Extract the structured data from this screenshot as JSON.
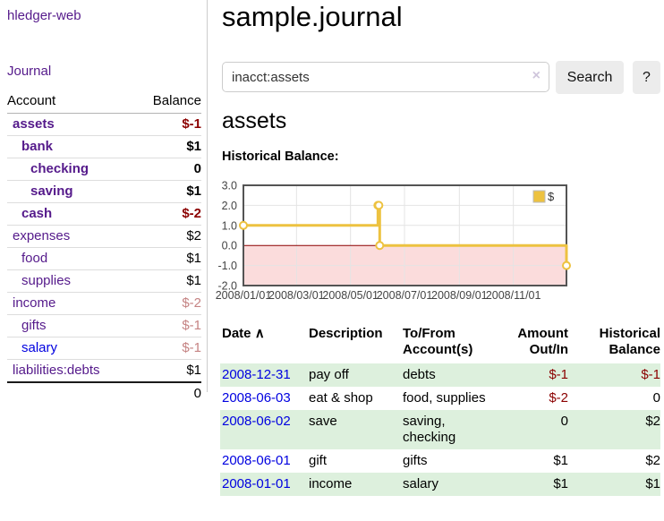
{
  "app": {
    "brand": "hledger-web",
    "nav_journal": "Journal"
  },
  "header": {
    "title": "sample.journal"
  },
  "search": {
    "query": "inacct:assets",
    "clear_icon": "×",
    "search_label": "Search",
    "help_label": "?"
  },
  "account_page": {
    "heading": "assets",
    "chart_label": "Historical Balance:"
  },
  "sidebar": {
    "headers": {
      "account": "Account",
      "balance": "Balance"
    },
    "accounts": [
      {
        "name": "assets",
        "balance": "$-1",
        "depth": 1,
        "bold": true,
        "bal": "neg",
        "link": "purple"
      },
      {
        "name": "bank",
        "balance": "$1",
        "depth": 2,
        "bold": true,
        "bal": "pos",
        "link": "purple"
      },
      {
        "name": "checking",
        "balance": "0",
        "depth": 3,
        "bold": true,
        "bal": "pos",
        "link": "purple"
      },
      {
        "name": "saving",
        "balance": "$1",
        "depth": 3,
        "bold": true,
        "bal": "pos",
        "link": "purple"
      },
      {
        "name": "cash",
        "balance": "$-2",
        "depth": 2,
        "bold": true,
        "bal": "neg",
        "link": "purple"
      },
      {
        "name": "expenses",
        "balance": "$2",
        "depth": 1,
        "bold": false,
        "bal": "pos",
        "link": "purple"
      },
      {
        "name": "food",
        "balance": "$1",
        "depth": 2,
        "bold": false,
        "bal": "pos",
        "link": "purple"
      },
      {
        "name": "supplies",
        "balance": "$1",
        "depth": 2,
        "bold": false,
        "bal": "pos",
        "link": "purple"
      },
      {
        "name": "income",
        "balance": "$-2",
        "depth": 1,
        "bold": false,
        "bal": "negfade",
        "link": "purple"
      },
      {
        "name": "gifts",
        "balance": "$-1",
        "depth": 2,
        "bold": false,
        "bal": "negfade",
        "link": "purple"
      },
      {
        "name": "salary",
        "balance": "$-1",
        "depth": 2,
        "bold": false,
        "bal": "negfade",
        "link": "blue"
      },
      {
        "name": "liabilities:debts",
        "balance": "$1",
        "depth": 1,
        "bold": false,
        "bal": "pos",
        "link": "purple"
      }
    ],
    "total": "0"
  },
  "chart_data": {
    "type": "line",
    "step": true,
    "series": [
      {
        "name": "$",
        "color": "#edc240",
        "points": [
          {
            "date": "2008-01-01",
            "value": 1
          },
          {
            "date": "2008-06-01",
            "value": 2
          },
          {
            "date": "2008-06-02",
            "value": 2
          },
          {
            "date": "2008-06-03",
            "value": 0
          },
          {
            "date": "2008-12-31",
            "value": -1
          }
        ]
      }
    ],
    "ylim": [
      -2,
      3
    ],
    "xrange": [
      "2008-01-01",
      "2008-12-31"
    ],
    "yticks": [
      {
        "value": 3,
        "label": "3.0"
      },
      {
        "value": 2,
        "label": "2.0"
      },
      {
        "value": 1,
        "label": "1.0"
      },
      {
        "value": 0,
        "label": "0.0"
      },
      {
        "value": -1,
        "label": "-1.0"
      },
      {
        "value": -2,
        "label": "-2.0"
      }
    ],
    "xticks": [
      {
        "date": "2008-01-01",
        "label": "2008/01/01"
      },
      {
        "date": "2008-03-01",
        "label": "2008/03/01"
      },
      {
        "date": "2008-05-01",
        "label": "2008/05/01"
      },
      {
        "date": "2008-07-01",
        "label": "2008/07/01"
      },
      {
        "date": "2008-09-01",
        "label": "2008/09/01"
      },
      {
        "date": "2008-11-01",
        "label": "2008/11/01"
      }
    ],
    "grid": true,
    "legend": {
      "position": "top-right",
      "label": "$"
    },
    "markings": {
      "below_zero_fill": "#fbdcdc",
      "zero_line": "#8b0000",
      "border": "#545454",
      "gridline": "#e4e4e4"
    }
  },
  "register": {
    "headers": {
      "date": "Date",
      "sort_icon": "∧",
      "description": "Description",
      "accounts": "To/From Account(s)",
      "amount": "Amount Out/In",
      "balance": "Historical Balance"
    },
    "rows": [
      {
        "date": "2008-12-31",
        "description": "pay off",
        "accounts": "debts",
        "amount": "$-1",
        "amount_neg": true,
        "balance": "$-1",
        "balance_neg": true
      },
      {
        "date": "2008-06-03",
        "description": "eat & shop",
        "accounts": "food, supplies",
        "amount": "$-2",
        "amount_neg": true,
        "balance": "0",
        "balance_neg": false
      },
      {
        "date": "2008-06-02",
        "description": "save",
        "accounts": "saving, checking",
        "amount": "0",
        "amount_neg": false,
        "balance": "$2",
        "balance_neg": false
      },
      {
        "date": "2008-06-01",
        "description": "gift",
        "accounts": "gifts",
        "amount": "$1",
        "amount_neg": false,
        "balance": "$2",
        "balance_neg": false
      },
      {
        "date": "2008-01-01",
        "description": "income",
        "accounts": "salary",
        "amount": "$1",
        "amount_neg": false,
        "balance": "$1",
        "balance_neg": false
      }
    ]
  },
  "colors": {
    "link_purple": "#551a8b",
    "link_blue": "#0000e0",
    "negative": "#8b0000",
    "negative_faded": "#c58383",
    "row_highlight_green": "#ddf0dd",
    "chart_line": "#edc240",
    "chart_negative_fill": "#fbdcdc",
    "chart_zero_line": "#8b0000",
    "chart_border": "#545454"
  }
}
